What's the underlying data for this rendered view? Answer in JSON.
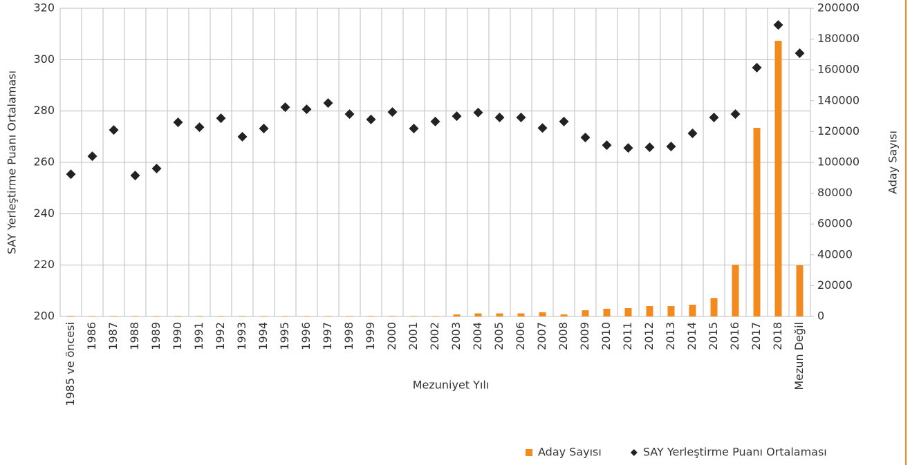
{
  "chart_data": {
    "type": "combo",
    "x_label": "Mezuniyet Yılı",
    "y_label": "SAY Yerleştirme Puanı Ortalaması",
    "y2_label": "Aday Sayısı",
    "categories": [
      "1985 ve öncesi",
      "1986",
      "1987",
      "1988",
      "1989",
      "1990",
      "1991",
      "1992",
      "1993",
      "1994",
      "1995",
      "1996",
      "1997",
      "1998",
      "1999",
      "2000",
      "2001",
      "2002",
      "2003",
      "2004",
      "2005",
      "2006",
      "2007",
      "2008",
      "2009",
      "2010",
      "2011",
      "2012",
      "2013",
      "2014",
      "2015",
      "2016",
      "2017",
      "2018",
      "Mezun Değil"
    ],
    "ylim": [
      200,
      320
    ],
    "yticks": [
      200,
      220,
      240,
      260,
      280,
      300,
      320
    ],
    "y2lim": [
      0,
      200000
    ],
    "y2ticks": [
      0,
      20000,
      40000,
      60000,
      80000,
      100000,
      120000,
      140000,
      160000,
      180000,
      200000
    ],
    "grid": true,
    "legend": "bottom-right",
    "series": [
      {
        "name": "Aday Sayısı",
        "type": "bar",
        "axis": "y2",
        "color": "#f28a1e",
        "values": [
          400,
          300,
          300,
          300,
          300,
          300,
          300,
          300,
          300,
          300,
          300,
          300,
          300,
          300,
          300,
          300,
          300,
          300,
          1300,
          2000,
          2000,
          2000,
          2700,
          1300,
          4000,
          5000,
          5400,
          6700,
          6700,
          7600,
          12000,
          33600,
          122400,
          178900,
          33200
        ]
      },
      {
        "name": "SAY Yerleştirme Puanı Ortalaması",
        "type": "scatter",
        "color": "#222222",
        "values": [
          255.4,
          262.4,
          272.6,
          254.9,
          257.6,
          275.6,
          273.7,
          277.2,
          270.0,
          273.2,
          281.5,
          280.7,
          283.1,
          278.8,
          276.7,
          279.6,
          273.2,
          275.9,
          278.0,
          279.4,
          277.5,
          277.5,
          273.4,
          275.9,
          269.7,
          266.7,
          265.6,
          265.9,
          266.2,
          271.3,
          277.5,
          278.8,
          296.9,
          313.5,
          302.5
        ]
      }
    ]
  }
}
